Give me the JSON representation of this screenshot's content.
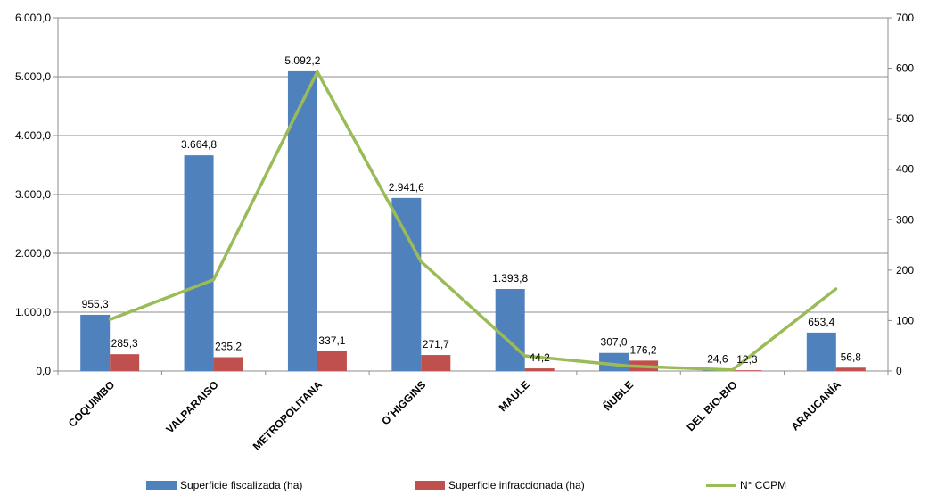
{
  "chart_data": {
    "type": "bar",
    "categories": [
      "COQUIMBO",
      "VALPARAÍSO",
      "METROPOLITANA",
      "O´HIGGINS",
      "MAULE",
      "ÑUBLE",
      "DEL BIO-BIO",
      "ARAUCANÍA"
    ],
    "series": [
      {
        "name": "Superficie fiscalizada (ha)",
        "type": "bar",
        "axis": "left",
        "color": "#4F81BD",
        "values": [
          955.3,
          3664.8,
          5092.2,
          2941.6,
          1393.8,
          307.0,
          24.6,
          653.4
        ],
        "labels": [
          "955,3",
          "3.664,8",
          "5.092,2",
          "2.941,6",
          "1.393,8",
          "307,0",
          "24,6",
          "653,4"
        ]
      },
      {
        "name": "Superficie infraccionada (ha)",
        "type": "bar",
        "axis": "left",
        "color": "#C0504D",
        "values": [
          285.3,
          235.2,
          337.1,
          271.7,
          44.2,
          176.2,
          12.3,
          56.8
        ],
        "labels": [
          "285,3",
          "235,2",
          "337,1",
          "271,7",
          "44,2",
          "176,2",
          "12,3",
          "56,8"
        ]
      },
      {
        "name": "N° CCPM",
        "type": "line",
        "axis": "right",
        "color": "#9BBB59",
        "values": [
          102,
          181,
          593,
          217,
          30,
          10,
          2,
          163
        ]
      }
    ],
    "y_left": {
      "min": 0,
      "max": 6000,
      "step": 1000,
      "ticks": [
        "0,0",
        "1.000,0",
        "2.000,0",
        "3.000,0",
        "4.000,0",
        "5.000,0",
        "6.000,0"
      ]
    },
    "y_right": {
      "min": 0,
      "max": 700,
      "step": 100,
      "ticks": [
        "0",
        "100",
        "200",
        "300",
        "400",
        "500",
        "600",
        "700"
      ]
    },
    "grid": true,
    "legend_position": "bottom",
    "title": "",
    "xlabel": "",
    "ylabel": ""
  }
}
